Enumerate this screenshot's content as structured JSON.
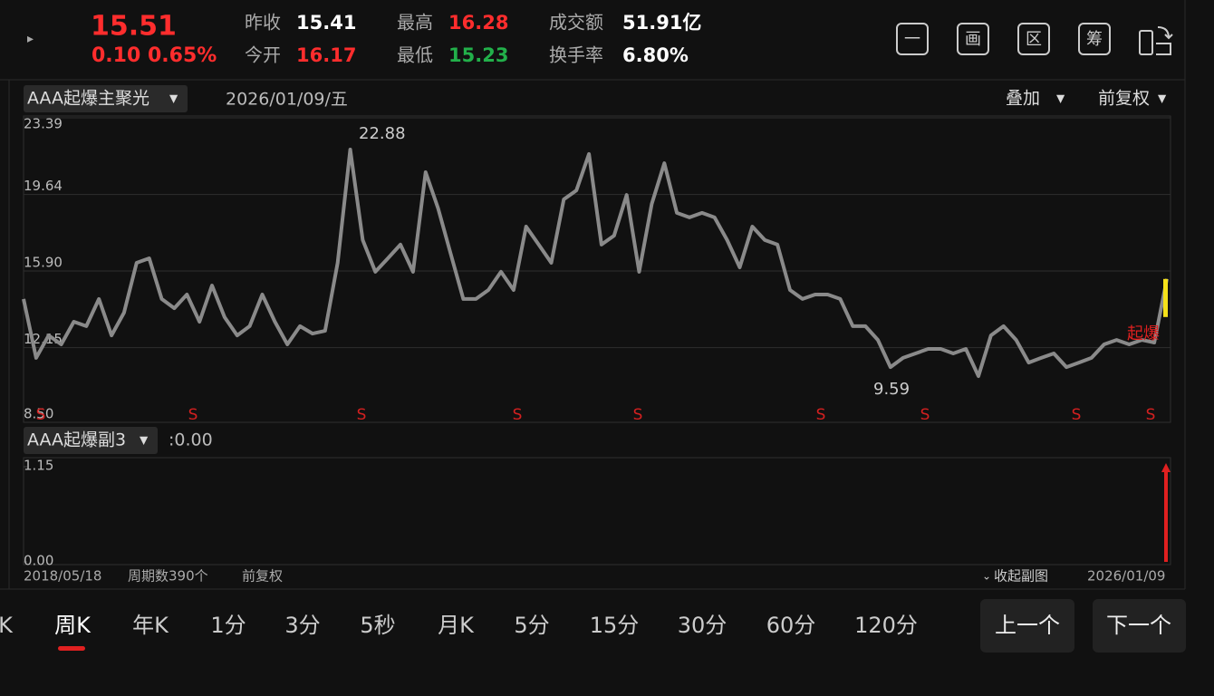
{
  "header": {
    "price": "15.51",
    "change": "0.10",
    "change_pct": "0.65%",
    "stats": [
      {
        "label": "昨收",
        "value": "15.41"
      },
      {
        "label": "今开",
        "value": "16.17"
      },
      {
        "label": "最高",
        "value": "16.28"
      },
      {
        "label": "最低",
        "value": "15.23"
      },
      {
        "label": "成交额",
        "value": "51.91亿"
      },
      {
        "label": "换手率",
        "value": "6.80%"
      }
    ],
    "tools": [
      "一",
      "画",
      "区",
      "筹"
    ]
  },
  "toolbar": {
    "indicator": "AAA起爆主聚光",
    "date": "2026/01/09/五",
    "overlay": "叠加",
    "adjust": "前复权"
  },
  "chart_data": [
    {
      "type": "line",
      "color": "#8a8a8a",
      "values": [
        14.53,
        11.65,
        12.75,
        12.31,
        13.42,
        13.2,
        14.53,
        12.75,
        13.86,
        16.3,
        16.52,
        14.53,
        14.08,
        14.75,
        13.42,
        15.19,
        13.64,
        12.75,
        13.2,
        14.75,
        13.42,
        12.31,
        13.2,
        12.84,
        12.97,
        16.3,
        21.84,
        17.41,
        15.86,
        16.52,
        17.19,
        15.86,
        20.73,
        18.96,
        16.74,
        14.53,
        14.53,
        14.97,
        15.86,
        14.97,
        18.07,
        17.19,
        16.3,
        19.4,
        19.84,
        21.62,
        17.19,
        17.63,
        19.62,
        15.86,
        19.18,
        21.17,
        18.74,
        18.52,
        18.74,
        18.52,
        17.41,
        16.08,
        18.07,
        17.41,
        17.19,
        14.97,
        14.53,
        14.75,
        14.75,
        14.53,
        13.2,
        13.2,
        12.53,
        11.2,
        11.65,
        11.87,
        12.09,
        12.09,
        11.87,
        12.09,
        10.76,
        12.75,
        13.2,
        12.53,
        11.42,
        11.65,
        11.87,
        11.2,
        11.42,
        11.65,
        12.31,
        12.53,
        12.31,
        12.53,
        12.4,
        15.51
      ],
      "ylim": [
        8.5,
        23.39
      ],
      "yticks": [
        23.39,
        19.64,
        {
          "value": 15.9,
          "label": "15.90"
        },
        12.15,
        {
          "value": 8.5,
          "label": "8.50"
        }
      ],
      "grid": true,
      "max_label": 22.88,
      "min_label": 9.59,
      "signal_label": "S",
      "signal_annotation": "起爆"
    },
    {
      "type": "bar",
      "title": "AAA起爆副3",
      "readout": ":0.00",
      "color": "#e02020",
      "values": [
        1.15
      ],
      "ylim": [
        0,
        1.15
      ],
      "yticks": [
        1.15,
        {
          "value": 0,
          "label": "0.00"
        }
      ]
    }
  ],
  "footer": {
    "start": "2018/05/18",
    "periods": "周期数390个",
    "adjust": "前复权",
    "collapse": "收起副图",
    "end": "2026/01/09"
  },
  "tabs": [
    "K",
    "周K",
    "年K",
    "1分",
    "3分",
    "5秒",
    "月K",
    "5分",
    "15分",
    "30分",
    "60分",
    "120分"
  ],
  "nav": {
    "prev": "上一个",
    "next": "下一个"
  }
}
